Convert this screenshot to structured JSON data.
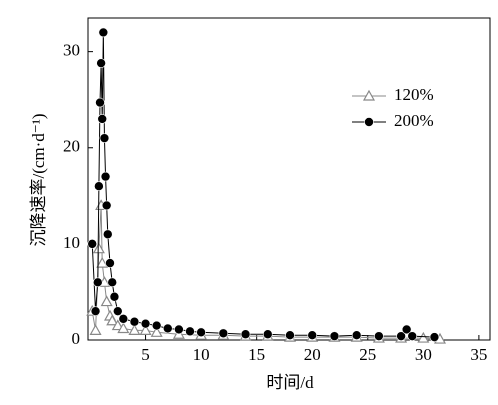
{
  "chart_data": {
    "type": "line",
    "xlabel": "时间/d",
    "ylabel": "沉降速率/(cm·d⁻¹)",
    "xlim": [
      0,
      36
    ],
    "xticks": [
      5,
      10,
      15,
      20,
      25,
      30,
      35
    ],
    "ylim": [
      0,
      33.5
    ],
    "yticks": [
      0,
      10,
      20,
      30
    ],
    "legend": "right",
    "series": [
      {
        "name": "120%",
        "color": "#888888",
        "marker": "triangle",
        "x": [
          0.2,
          0.5,
          0.8,
          1.0,
          1.1,
          1.3,
          1.5,
          1.8,
          2.0,
          2.5,
          3,
          4,
          5,
          6,
          8,
          10,
          12,
          14,
          16,
          18,
          20,
          22,
          24,
          26,
          28,
          30,
          31.5
        ],
        "values": [
          3,
          1,
          9.5,
          14,
          8,
          6,
          4,
          2.5,
          2,
          1.5,
          1.2,
          1,
          1,
          0.8,
          0.6,
          0.5,
          0.5,
          0.4,
          0.4,
          0.3,
          0.3,
          0.3,
          0.3,
          0.2,
          0.2,
          0.2,
          0.1
        ]
      },
      {
        "name": "200%",
        "color": "#000000",
        "marker": "circle",
        "x": [
          0.2,
          0.5,
          0.7,
          0.8,
          0.9,
          1.0,
          1.1,
          1.2,
          1.3,
          1.4,
          1.5,
          1.6,
          1.8,
          2.0,
          2.2,
          2.5,
          3,
          4,
          5,
          6,
          7,
          8,
          9,
          10,
          12,
          14,
          16,
          18,
          20,
          22,
          24,
          26,
          28,
          28.5,
          29,
          31
        ],
        "values": [
          10,
          3,
          6,
          16,
          24.7,
          28.8,
          23,
          32,
          21,
          17,
          14,
          11,
          8,
          6,
          4.5,
          3,
          2.2,
          1.9,
          1.7,
          1.5,
          1.2,
          1.1,
          0.9,
          0.8,
          0.7,
          0.6,
          0.6,
          0.5,
          0.5,
          0.4,
          0.5,
          0.4,
          0.4,
          1.1,
          0.4,
          0.3
        ]
      }
    ]
  }
}
